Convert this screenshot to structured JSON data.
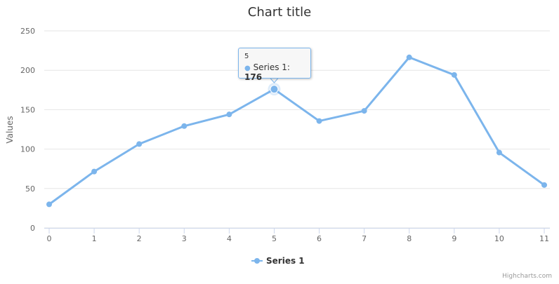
{
  "chart_data": {
    "type": "line",
    "title": "Chart title",
    "ylabel": "Values",
    "xlabel": "",
    "categories": [
      0,
      1,
      2,
      3,
      4,
      5,
      6,
      7,
      8,
      9,
      10,
      11
    ],
    "series": [
      {
        "name": "Series 1",
        "color": "#7cb5ec",
        "values": [
          29.9,
          71.5,
          106.4,
          129.2,
          144.0,
          176.0,
          135.6,
          148.5,
          216.4,
          194.1,
          95.6,
          54.4
        ]
      }
    ],
    "ylim": [
      0,
      250
    ],
    "yticks": [
      0,
      50,
      100,
      150,
      200,
      250
    ],
    "grid": true,
    "legend": "bottom-center",
    "tooltip": {
      "x": "5",
      "series": "Series 1",
      "value": "176"
    }
  },
  "credits": "Highcharts.com"
}
